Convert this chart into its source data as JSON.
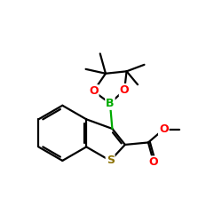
{
  "bg_color": "#ffffff",
  "bond_color": "#000000",
  "S_color": "#8b7000",
  "B_color": "#00aa00",
  "O_color": "#ff0000",
  "line_width": 1.6,
  "figsize": [
    2.5,
    2.5
  ],
  "dpi": 100,
  "xlim": [
    0,
    10
  ],
  "ylim": [
    0,
    10
  ]
}
